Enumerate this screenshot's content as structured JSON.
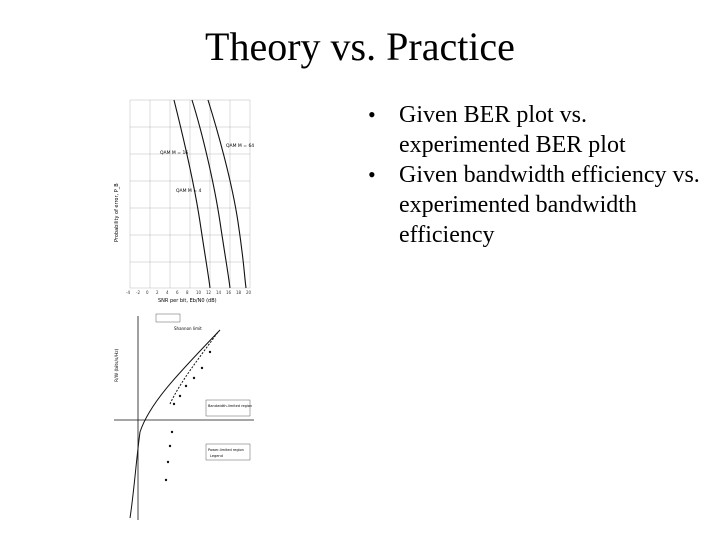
{
  "title": "Theory vs. Practice",
  "bullets": [
    {
      "text": "Given BER plot vs. experimented BER plot"
    },
    {
      "text": "Given bandwidth efficiency vs. experimented bandwidth efficiency"
    }
  ],
  "bullet_glyph": "•",
  "ber_plot": {
    "ylabel": "Probability of error, P_B",
    "xlabel": "SNR per bit, Eb/N0 (dB)",
    "x_ticks": [
      "-4",
      "-2",
      "0",
      "2",
      "4",
      "6",
      "8",
      "10",
      "12",
      "14",
      "16",
      "18",
      "20"
    ],
    "annotations": [
      "QAM M = 16",
      "QAM M = 4",
      "QAM M = 64"
    ]
  },
  "bw_plot": {
    "ylabel": "R/W (bits/s/Hz)",
    "annotations": [
      "Shannon limit",
      "Bandwidth-limited region",
      "Power-limited region",
      "Legend"
    ]
  },
  "colors": {
    "text": "#000000",
    "background": "#ffffff",
    "plot_line": "#222222",
    "grid": "#999999"
  }
}
